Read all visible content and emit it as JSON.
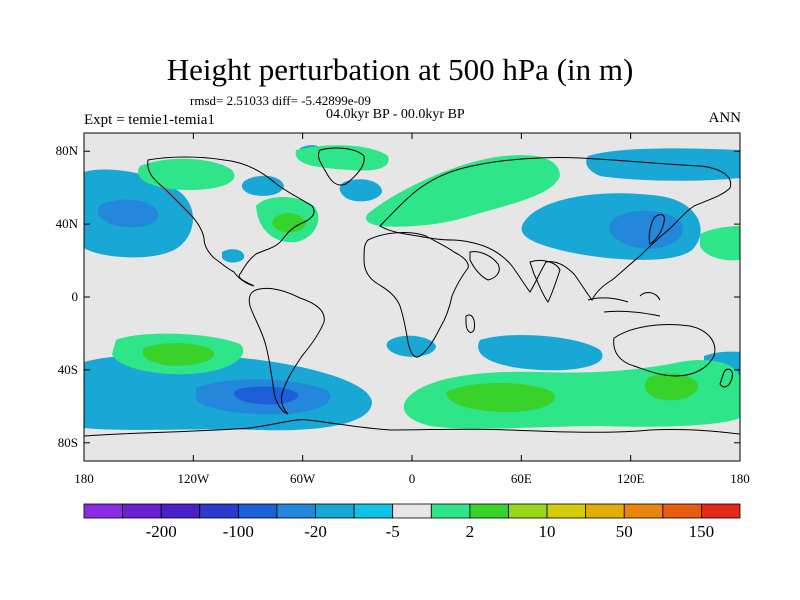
{
  "header": {
    "title": "Height perturbation at 500 hPa (in m)",
    "stats": "rmsd= 2.51033 diff= -5.42899e-09",
    "period": "04.0kyr BP - 00.0kyr BP",
    "experiment": "Expt = temie1-temia1",
    "season": "ANN"
  },
  "map": {
    "projection": "cylindrical-equidistant",
    "lon_range": [
      -180,
      180
    ],
    "lat_range": [
      -90,
      90
    ],
    "x_ticks": [
      {
        "lon": -180,
        "label": "180"
      },
      {
        "lon": -120,
        "label": "120W"
      },
      {
        "lon": -60,
        "label": "60W"
      },
      {
        "lon": 0,
        "label": "0"
      },
      {
        "lon": 60,
        "label": "60E"
      },
      {
        "lon": 120,
        "label": "120E"
      },
      {
        "lon": 180,
        "label": "180"
      }
    ],
    "y_ticks": [
      {
        "lat": 80,
        "label": "80N"
      },
      {
        "lat": 40,
        "label": "40N"
      },
      {
        "lat": 0,
        "label": "0"
      },
      {
        "lat": -40,
        "label": "40S"
      },
      {
        "lat": -80,
        "label": "80S"
      }
    ],
    "background_color": "#e6e6e6",
    "coastline_color": "#000000"
  },
  "colorbar": {
    "colors": [
      "#8a2be2",
      "#6a1fd0",
      "#4a21c8",
      "#2c3acd",
      "#1c5fd8",
      "#2387db",
      "#19a8d6",
      "#11c2e2",
      "#e6e6e6",
      "#2ee58a",
      "#38d22a",
      "#9ad61a",
      "#d4cb0c",
      "#e3ad08",
      "#e9850c",
      "#ea5a10",
      "#e6291a"
    ],
    "labels": [
      {
        "after_index": 1,
        "text": "-200"
      },
      {
        "after_index": 3,
        "text": "-100"
      },
      {
        "after_index": 5,
        "text": "-20"
      },
      {
        "after_index": 7,
        "text": "-5"
      },
      {
        "after_index": 9,
        "text": "2"
      },
      {
        "after_index": 11,
        "text": "10"
      },
      {
        "after_index": 13,
        "text": "50"
      },
      {
        "after_index": 15,
        "text": "150"
      }
    ]
  }
}
